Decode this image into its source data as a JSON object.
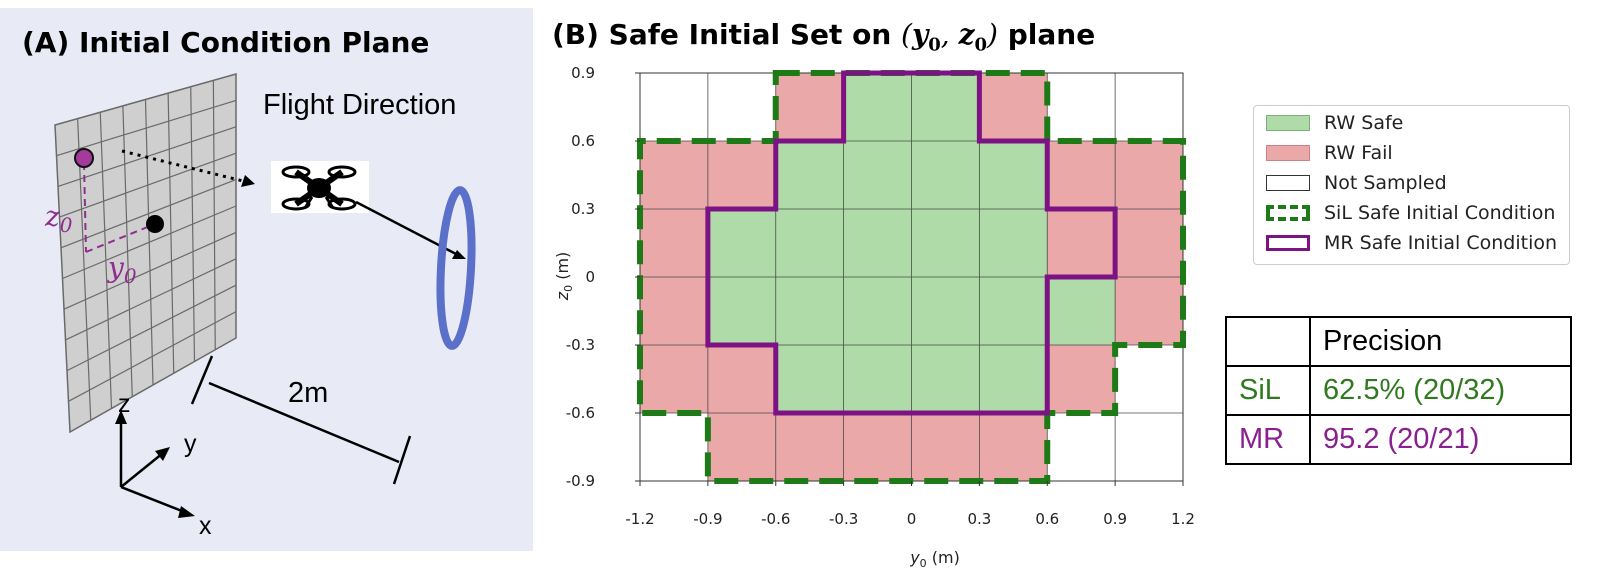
{
  "colors": {
    "panel_bg": "#e8ebf5",
    "green_fill": "#aedba7",
    "red_fill": "#eba8a9",
    "sil_color": "#1e7a16",
    "mr_color": "#7d1285",
    "ring_color": "#5b70c8",
    "grid_plane": "#cfcfcf"
  },
  "panel_a": {
    "title": "(A) Initial Condition Plane",
    "flight_direction": "Flight Direction",
    "distance_label": "2m",
    "axis_labels": {
      "z": "z",
      "y": "y",
      "x": "x"
    },
    "z0_label": {
      "base": "z",
      "sub": "0"
    },
    "y0_label": {
      "base": "y",
      "sub": "0"
    },
    "icons": [
      "grid-plane-icon",
      "drone-icon",
      "gate-ring-icon",
      "axes-icon"
    ]
  },
  "panel_b": {
    "title_prefix": "(B) Safe Initial Set on ",
    "title_math": {
      "open": "(",
      "y": "y",
      "y_sub": "0",
      "sep": ", ",
      "z": "z",
      "z_sub": "0",
      "close": ")"
    },
    "title_suffix": " plane"
  },
  "chart_data": {
    "type": "heatmap",
    "xlabel": {
      "base": "y",
      "sub": "0",
      "unit": " (m)"
    },
    "ylabel": {
      "base": "z",
      "sub": "0",
      "unit": " (m)"
    },
    "xlim": [
      -1.2,
      1.2
    ],
    "ylim": [
      -0.9,
      0.9
    ],
    "x_ticks": [
      "-1.2",
      "-0.9",
      "-0.6",
      "-0.3",
      "0",
      "0.3",
      "0.6",
      "0.9",
      "1.2"
    ],
    "y_ticks": [
      "0.9",
      "0.6",
      "0.3",
      "0",
      "-0.3",
      "-0.6",
      "-0.9"
    ],
    "cell_size": 0.3,
    "grid": true,
    "cell_status_rows_top_to_bottom": [
      [
        "N",
        "N",
        "F",
        "S",
        "S",
        "F",
        "N",
        "N"
      ],
      [
        "F",
        "F",
        "S",
        "S",
        "S",
        "S",
        "F",
        "F"
      ],
      [
        "F",
        "S",
        "S",
        "S",
        "S",
        "S",
        "F",
        "F"
      ],
      [
        "F",
        "S",
        "S",
        "S",
        "S",
        "S",
        "S",
        "F"
      ],
      [
        "F",
        "F",
        "S",
        "S",
        "S",
        "S",
        "F",
        "N"
      ],
      [
        "N",
        "F",
        "F",
        "F",
        "F",
        "F",
        "N",
        "N"
      ]
    ],
    "status_key": {
      "S": "RW Safe",
      "F": "RW Fail",
      "N": "Not Sampled"
    },
    "sil_boundary": [
      [
        -0.6,
        0.9
      ],
      [
        0.6,
        0.9
      ],
      [
        0.6,
        0.6
      ],
      [
        1.2,
        0.6
      ],
      [
        1.2,
        -0.3
      ],
      [
        0.9,
        -0.3
      ],
      [
        0.9,
        -0.6
      ],
      [
        0.6,
        -0.6
      ],
      [
        0.6,
        -0.9
      ],
      [
        -0.9,
        -0.9
      ],
      [
        -0.9,
        -0.6
      ],
      [
        -1.2,
        -0.6
      ],
      [
        -1.2,
        0.6
      ],
      [
        -0.6,
        0.6
      ]
    ],
    "mr_boundary": [
      [
        -0.3,
        0.9
      ],
      [
        0.3,
        0.9
      ],
      [
        0.3,
        0.6
      ],
      [
        0.6,
        0.6
      ],
      [
        0.6,
        0.3
      ],
      [
        0.9,
        0.3
      ],
      [
        0.9,
        0.0
      ],
      [
        0.6,
        0.0
      ],
      [
        0.6,
        -0.6
      ],
      [
        -0.6,
        -0.6
      ],
      [
        -0.6,
        -0.3
      ],
      [
        -0.9,
        -0.3
      ],
      [
        -0.9,
        0.3
      ],
      [
        -0.6,
        0.3
      ],
      [
        -0.6,
        0.6
      ],
      [
        -0.3,
        0.6
      ]
    ],
    "legend": [
      {
        "label": "RW Safe",
        "style": "safe"
      },
      {
        "label": "RW Fail",
        "style": "fail"
      },
      {
        "label": "Not Sampled",
        "style": "none"
      },
      {
        "label": "SiL Safe Initial Condition",
        "style": "sil"
      },
      {
        "label": "MR Safe Initial Condition",
        "style": "mr"
      }
    ],
    "legend_position": "upper-right, outside plot"
  },
  "precision_table": {
    "header": [
      "",
      "Precision"
    ],
    "rows": [
      {
        "name": "SiL",
        "value": "62.5% (20/32)",
        "color": "#2f7a1f"
      },
      {
        "name": "MR",
        "value": "95.2 (20/21)",
        "color": "#8a1f8f"
      }
    ]
  }
}
